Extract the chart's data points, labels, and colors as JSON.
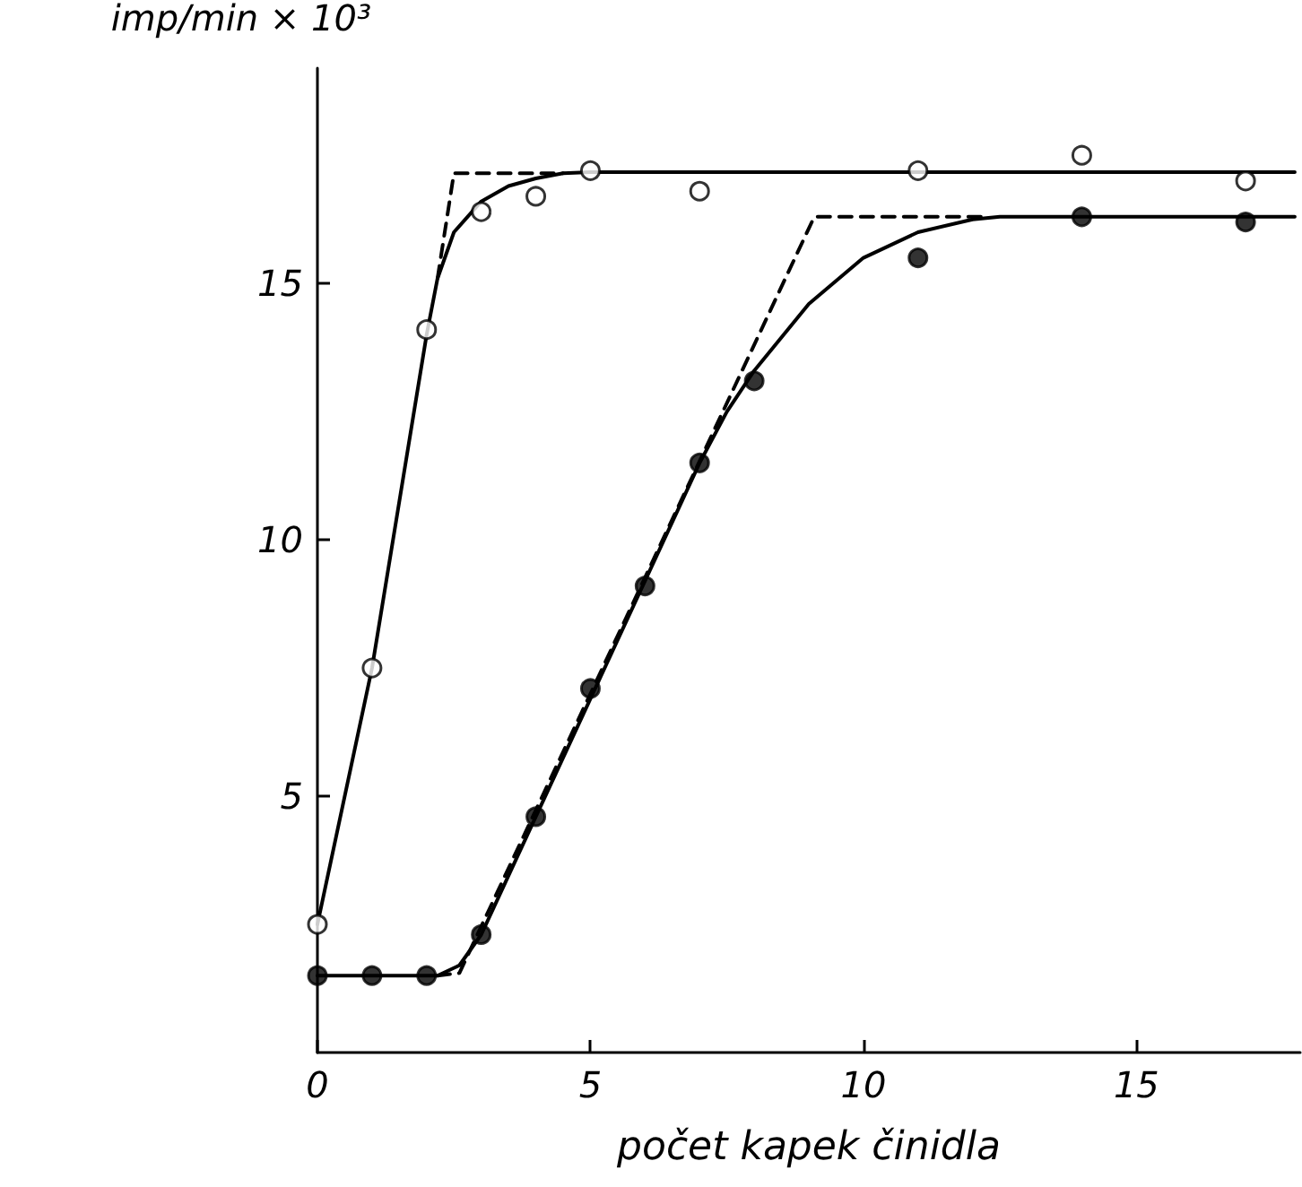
{
  "chart_data": {
    "type": "scatter",
    "xlabel": "počet kapek činidla",
    "ylabel": "imp/min × 10³",
    "xlim": [
      0,
      18
    ],
    "ylim": [
      0,
      19.2
    ],
    "xticks": [
      0,
      5,
      10,
      15
    ],
    "yticks": [
      5,
      10,
      15
    ],
    "grid": false,
    "series": [
      {
        "type": "line",
        "color": "#000000",
        "marker": "none",
        "line_style": "solid",
        "x": [
          0,
          1,
          2,
          2.2,
          2.5,
          3,
          3.5,
          4,
          4.5,
          5,
          17.9
        ],
        "values": [
          2.5,
          7.5,
          14.0,
          15.1,
          16.0,
          16.6,
          16.9,
          17.05,
          17.15,
          17.17,
          17.17
        ]
      },
      {
        "type": "line",
        "color": "#000000",
        "marker": "none",
        "line_style": "dashed",
        "x": [
          2.2,
          2.5,
          4.5
        ],
        "values": [
          15.1,
          17.15,
          17.15
        ]
      },
      {
        "type": "line",
        "color": "#000000",
        "marker": "none",
        "line_style": "solid",
        "x": [
          0,
          2.2,
          2.6,
          3,
          4,
          5,
          6,
          7,
          7.5,
          8,
          9,
          10,
          11,
          12,
          12.5,
          17.9
        ],
        "values": [
          1.5,
          1.5,
          1.7,
          2.3,
          4.6,
          6.9,
          9.2,
          11.5,
          12.5,
          13.3,
          14.6,
          15.5,
          16.0,
          16.25,
          16.3,
          16.3
        ]
      },
      {
        "type": "line",
        "color": "#000000",
        "marker": "none",
        "line_style": "dashed",
        "x": [
          2.2,
          2.6,
          9.1,
          12.2
        ],
        "values": [
          1.5,
          1.55,
          16.3,
          16.3
        ]
      },
      {
        "color": "#ffffff",
        "marker": "circle",
        "x": [
          0,
          1,
          2,
          3,
          4,
          5,
          7,
          11,
          14,
          17
        ],
        "values": [
          2.5,
          7.5,
          14.1,
          16.4,
          16.7,
          17.2,
          16.8,
          17.2,
          17.5,
          17.0
        ]
      },
      {
        "color": "#000000",
        "marker": "circle",
        "x": [
          0,
          1,
          2,
          3,
          4,
          5,
          6,
          7,
          8,
          11,
          14,
          17
        ],
        "values": [
          1.5,
          1.5,
          1.5,
          2.3,
          4.6,
          7.1,
          9.1,
          11.5,
          13.1,
          15.5,
          16.3,
          16.2
        ]
      }
    ]
  }
}
